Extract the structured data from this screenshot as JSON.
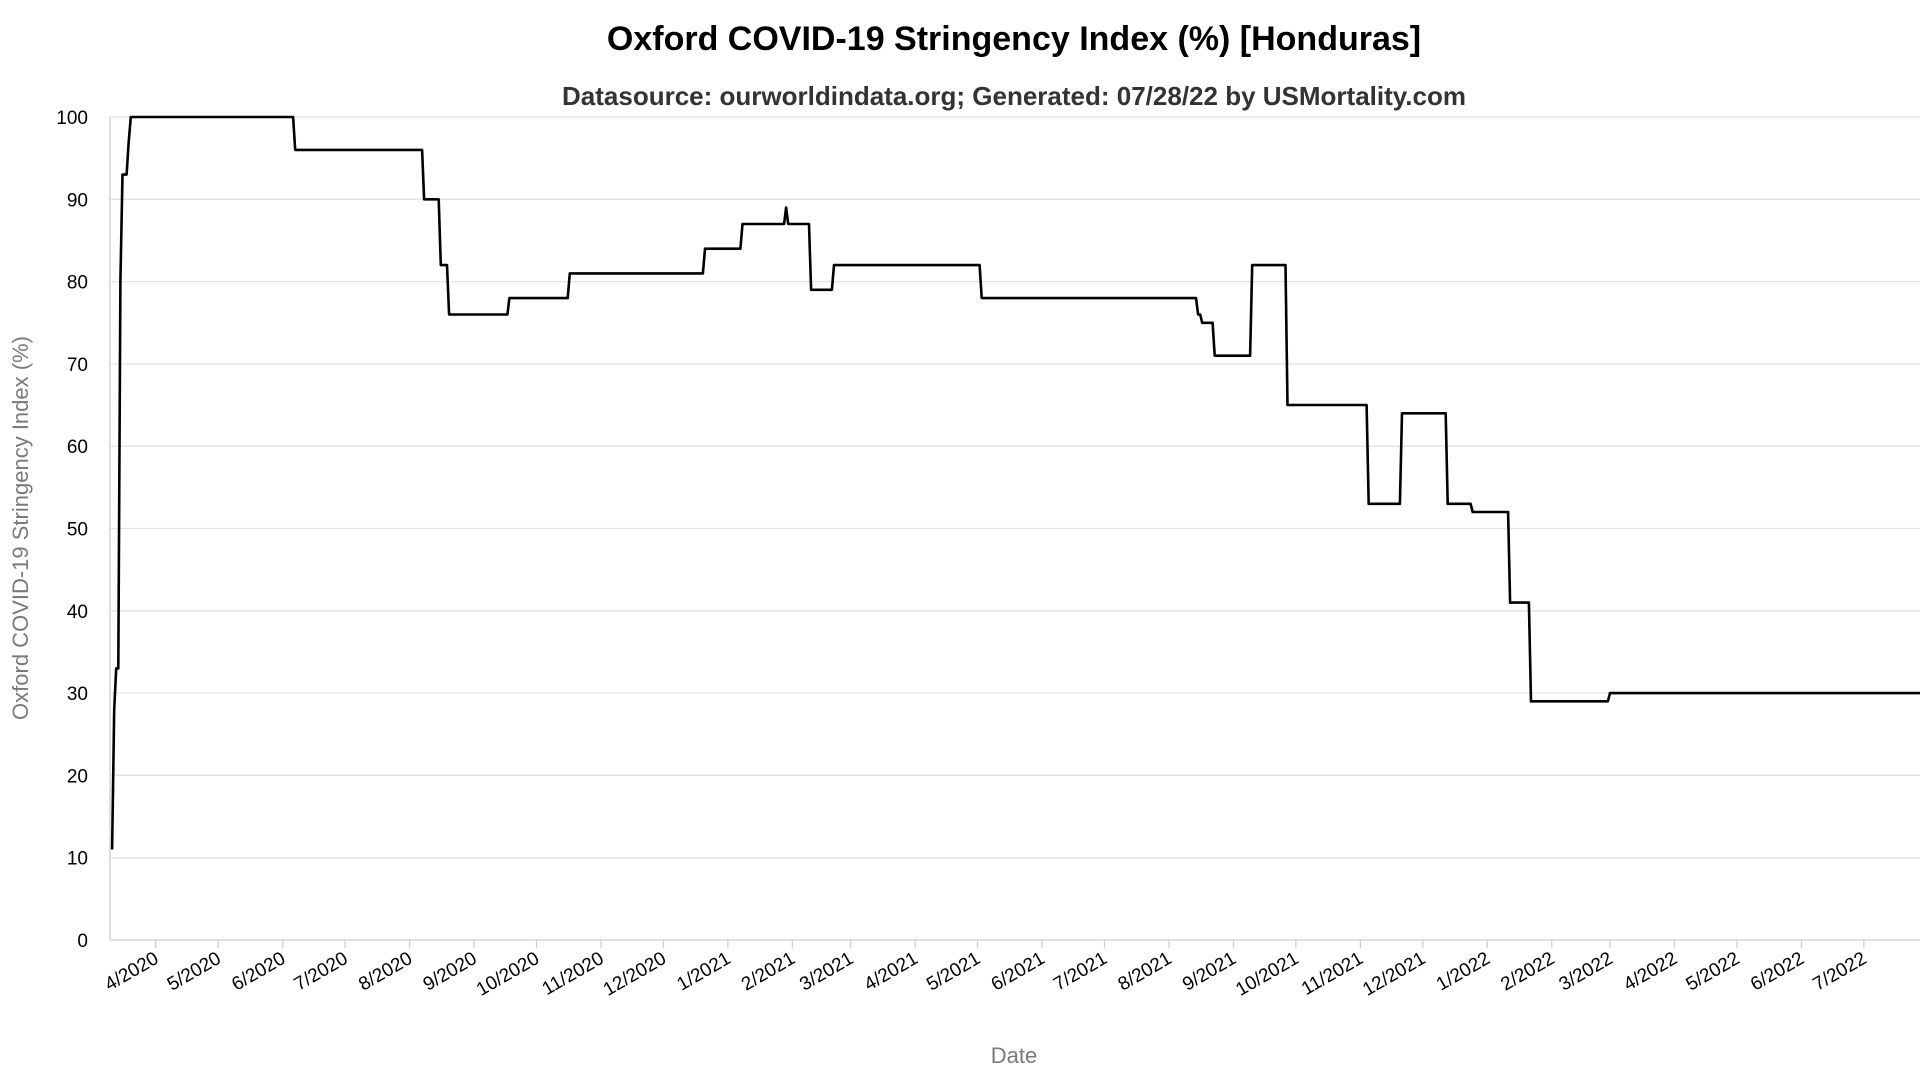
{
  "chart_data": {
    "type": "line",
    "title": "Oxford COVID-19 Stringency Index (%) [Honduras]",
    "subtitle": "Datasource: ourworldindata.org; Generated: 07/28/22 by USMortality.com",
    "xlabel": "Date",
    "ylabel": "Oxford COVID-19 Stringency Index (%)",
    "ylim": [
      0,
      100
    ],
    "y_ticks": [
      0,
      10,
      20,
      30,
      40,
      50,
      60,
      70,
      80,
      90,
      100
    ],
    "x_range": [
      "2020-03-10",
      "2022-07-28"
    ],
    "x_ticks": [
      {
        "date": "2020-04-01",
        "label": "4/2020"
      },
      {
        "date": "2020-05-01",
        "label": "5/2020"
      },
      {
        "date": "2020-06-01",
        "label": "6/2020"
      },
      {
        "date": "2020-07-01",
        "label": "7/2020"
      },
      {
        "date": "2020-08-01",
        "label": "8/2020"
      },
      {
        "date": "2020-09-01",
        "label": "9/2020"
      },
      {
        "date": "2020-10-01",
        "label": "10/2020"
      },
      {
        "date": "2020-11-01",
        "label": "11/2020"
      },
      {
        "date": "2020-12-01",
        "label": "12/2020"
      },
      {
        "date": "2021-01-01",
        "label": "1/2021"
      },
      {
        "date": "2021-02-01",
        "label": "2/2021"
      },
      {
        "date": "2021-03-01",
        "label": "3/2021"
      },
      {
        "date": "2021-04-01",
        "label": "4/2021"
      },
      {
        "date": "2021-05-01",
        "label": "5/2021"
      },
      {
        "date": "2021-06-01",
        "label": "6/2021"
      },
      {
        "date": "2021-07-01",
        "label": "7/2021"
      },
      {
        "date": "2021-08-01",
        "label": "8/2021"
      },
      {
        "date": "2021-09-01",
        "label": "9/2021"
      },
      {
        "date": "2021-10-01",
        "label": "10/2021"
      },
      {
        "date": "2021-11-01",
        "label": "11/2021"
      },
      {
        "date": "2021-12-01",
        "label": "12/2021"
      },
      {
        "date": "2022-01-01",
        "label": "1/2022"
      },
      {
        "date": "2022-02-01",
        "label": "2/2022"
      },
      {
        "date": "2022-03-01",
        "label": "3/2022"
      },
      {
        "date": "2022-04-01",
        "label": "4/2022"
      },
      {
        "date": "2022-05-01",
        "label": "5/2022"
      },
      {
        "date": "2022-06-01",
        "label": "6/2022"
      },
      {
        "date": "2022-07-01",
        "label": "7/2022"
      }
    ],
    "grid": true,
    "series": [
      {
        "color": "#000000",
        "points": [
          [
            "2020-03-11",
            11
          ],
          [
            "2020-03-12",
            28
          ],
          [
            "2020-03-13",
            33
          ],
          [
            "2020-03-14",
            33
          ],
          [
            "2020-03-15",
            80
          ],
          [
            "2020-03-16",
            93
          ],
          [
            "2020-03-18",
            93
          ],
          [
            "2020-03-19",
            97
          ],
          [
            "2020-03-20",
            100
          ],
          [
            "2020-06-06",
            100
          ],
          [
            "2020-06-07",
            96
          ],
          [
            "2020-08-07",
            96
          ],
          [
            "2020-08-08",
            90
          ],
          [
            "2020-08-15",
            90
          ],
          [
            "2020-08-16",
            82
          ],
          [
            "2020-08-19",
            82
          ],
          [
            "2020-08-20",
            76
          ],
          [
            "2020-09-17",
            76
          ],
          [
            "2020-09-18",
            78
          ],
          [
            "2020-10-16",
            78
          ],
          [
            "2020-10-17",
            81
          ],
          [
            "2020-12-20",
            81
          ],
          [
            "2020-12-21",
            84
          ],
          [
            "2021-01-07",
            84
          ],
          [
            "2021-01-08",
            87
          ],
          [
            "2021-01-28",
            87
          ],
          [
            "2021-01-29",
            89
          ],
          [
            "2021-01-30",
            87
          ],
          [
            "2021-02-09",
            87
          ],
          [
            "2021-02-10",
            79
          ],
          [
            "2021-02-20",
            79
          ],
          [
            "2021-02-21",
            82
          ],
          [
            "2021-05-02",
            82
          ],
          [
            "2021-05-03",
            78
          ],
          [
            "2021-08-14",
            78
          ],
          [
            "2021-08-15",
            76
          ],
          [
            "2021-08-16",
            76
          ],
          [
            "2021-08-17",
            75
          ],
          [
            "2021-08-22",
            75
          ],
          [
            "2021-08-23",
            71
          ],
          [
            "2021-09-09",
            71
          ],
          [
            "2021-09-10",
            82
          ],
          [
            "2021-09-26",
            82
          ],
          [
            "2021-09-27",
            65
          ],
          [
            "2021-11-04",
            65
          ],
          [
            "2021-11-05",
            53
          ],
          [
            "2021-11-20",
            53
          ],
          [
            "2021-11-21",
            64
          ],
          [
            "2021-12-12",
            64
          ],
          [
            "2021-12-13",
            53
          ],
          [
            "2021-12-24",
            53
          ],
          [
            "2021-12-25",
            52
          ],
          [
            "2022-01-11",
            52
          ],
          [
            "2022-01-12",
            41
          ],
          [
            "2022-01-21",
            41
          ],
          [
            "2022-01-22",
            29
          ],
          [
            "2022-02-28",
            29
          ],
          [
            "2022-03-01",
            30
          ],
          [
            "2022-07-28",
            30
          ]
        ]
      }
    ]
  }
}
